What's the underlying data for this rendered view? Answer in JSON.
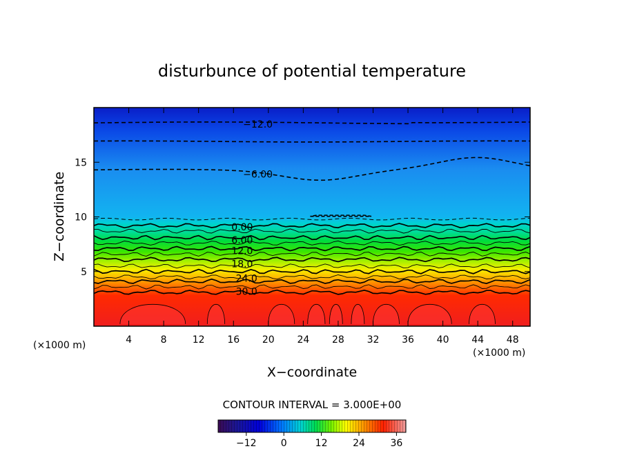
{
  "chart_data": {
    "type": "contour",
    "title": "disturbunce of potential temperature",
    "xlabel": "X−coordinate",
    "ylabel": "Z−coordinate",
    "x_unit_left": "(×1000 m)",
    "x_unit_right": "(×1000 m)",
    "xlim": [
      0,
      50
    ],
    "ylim": [
      0,
      20
    ],
    "x_ticks": [
      4,
      8,
      12,
      16,
      20,
      24,
      28,
      32,
      36,
      40,
      44,
      48
    ],
    "y_ticks": [
      5,
      10,
      15
    ],
    "contour_interval_text": "CONTOUR INTERVAL = 3.000E+00",
    "contour_interval": 3.0,
    "colorbar": {
      "min": -21,
      "max": 39,
      "ticks": [
        -12,
        0,
        12,
        24,
        36
      ],
      "colors": [
        "#3b0a52",
        "#0000c8",
        "#0078ff",
        "#00dcdc",
        "#00e060",
        "#70f000",
        "#ffff00",
        "#ff9000",
        "#ff2000",
        "#f0a0a0"
      ]
    },
    "contour_labels": [
      {
        "text": "−12.0",
        "value": -12,
        "x": 18.8,
        "z": 18.5
      },
      {
        "text": "−6.00",
        "value": -6,
        "x": 18.8,
        "z": 13.9
      },
      {
        "text": "0.00",
        "value": 0,
        "x": 17.0,
        "z": 9.1
      },
      {
        "text": "6.00",
        "value": 6,
        "x": 17.0,
        "z": 7.9
      },
      {
        "text": "12.0",
        "value": 12,
        "x": 17.0,
        "z": 6.9
      },
      {
        "text": "18.0",
        "value": 18,
        "x": 17.0,
        "z": 5.7
      },
      {
        "text": "24.0",
        "value": 24,
        "x": 17.5,
        "z": 4.4
      },
      {
        "text": "30.0",
        "value": 30,
        "x": 17.5,
        "z": 3.2
      }
    ]
  }
}
